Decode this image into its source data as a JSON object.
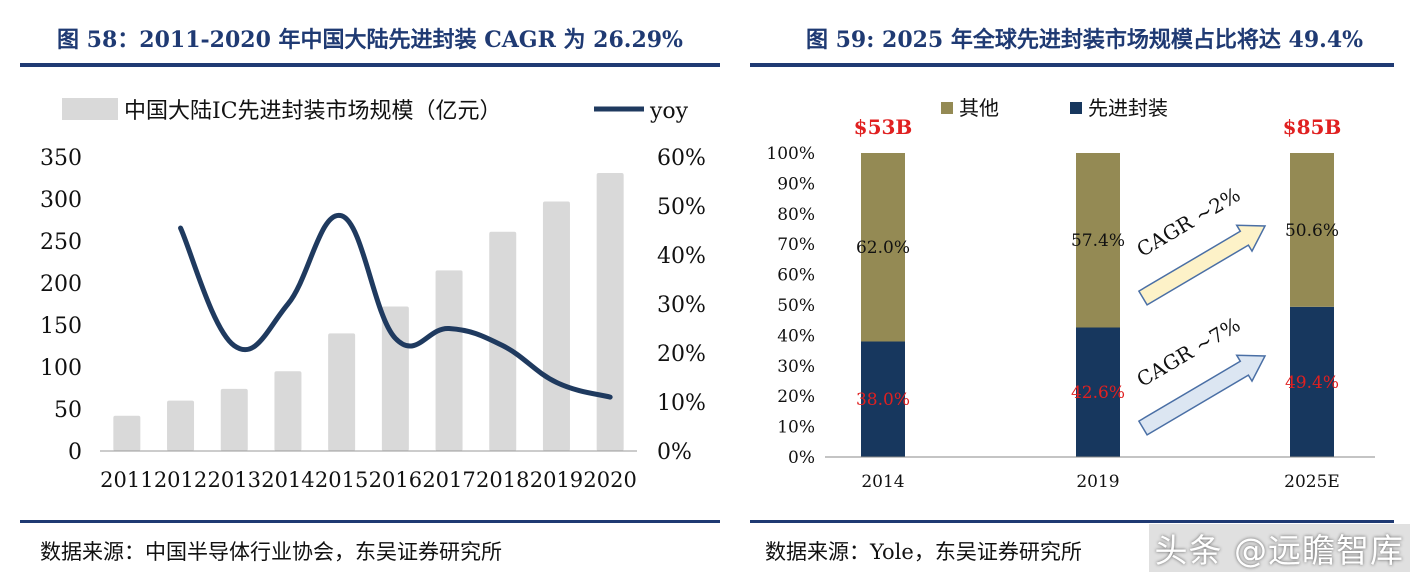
{
  "left": {
    "title": "图 58：2011-2020 年中国大陆先进封装 CAGR 为 26.29%",
    "source": "数据来源：中国半导体行业协会，东吴证券研究所",
    "chart_data": {
      "type": "bar",
      "categories": [
        "2011",
        "2012",
        "2013",
        "2014",
        "2015",
        "2016",
        "2017",
        "2018",
        "2019",
        "2020"
      ],
      "series": [
        {
          "name": "中国大陆IC先进封装市场规模（亿元）",
          "type": "bar",
          "axis": "left",
          "color": "#d9d9d9",
          "values": [
            42,
            60,
            74,
            95,
            140,
            172,
            215,
            261,
            297,
            331
          ]
        },
        {
          "name": "yoy",
          "type": "line",
          "axis": "right",
          "color": "#1f3a5f",
          "values": [
            null,
            45.5,
            21.5,
            30,
            48,
            23,
            25,
            21.5,
            14,
            11
          ]
        }
      ],
      "yleft": {
        "min": 0,
        "max": 350,
        "ticks": [
          "0",
          "50",
          "100",
          "150",
          "200",
          "250",
          "300",
          "350"
        ]
      },
      "yright": {
        "min": 0,
        "max": 60,
        "ticks": [
          "0%",
          "10%",
          "20%",
          "30%",
          "40%",
          "50%",
          "60%"
        ]
      },
      "legend": "top-left"
    }
  },
  "right": {
    "title": "图 59: 2025 年全球先进封装市场规模占比将达 49.4%",
    "source": "数据来源：Yole，东吴证券研究所",
    "chart_data": {
      "type": "bar",
      "stacked": true,
      "categories": [
        "2014",
        "2019",
        "2025E"
      ],
      "series": [
        {
          "name": "先进封装",
          "color": "#17375e",
          "values": [
            38.0,
            42.6,
            49.4
          ],
          "labels": [
            "38.0%",
            "42.6%",
            "49.4%"
          ]
        },
        {
          "name": "其他",
          "color": "#948a54",
          "values": [
            62.0,
            57.4,
            50.6
          ],
          "labels": [
            "62.0%",
            "57.4%",
            "50.6%"
          ]
        }
      ],
      "totals": [
        "$53B",
        "",
        "$85B"
      ],
      "yaxis": {
        "min": 0,
        "max": 100,
        "ticks": [
          "0%",
          "10%",
          "20%",
          "30%",
          "40%",
          "50%",
          "60%",
          "70%",
          "80%",
          "90%",
          "100%"
        ]
      },
      "annotations": [
        {
          "text": "CAGR ~2%",
          "color": "#fdf2c8"
        },
        {
          "text": "CAGR ~7%",
          "color": "#dce6f2"
        }
      ],
      "legend": "top"
    }
  },
  "watermark": "头条 @远瞻智库"
}
